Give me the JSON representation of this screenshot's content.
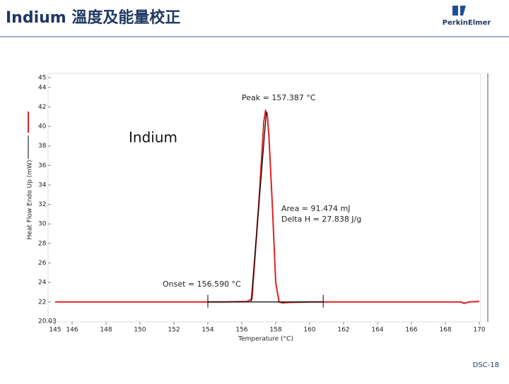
{
  "slide": {
    "title": "Indium 溫度及能量校正",
    "logo": "PerkinElmer",
    "footer": "DSC-18"
  },
  "chart_data": {
    "type": "line",
    "x_label": "Temperature (°C)",
    "y_label": "Heat Flow Endo Up (mW)",
    "annotations": [
      "Peak = 157.387 °C",
      "Indium",
      "Area = 91.474 mJ",
      "Delta H = 27.838 J/g",
      "Onset = 156.590 °C"
    ],
    "xlim": [
      145,
      170
    ],
    "xticks": [
      145,
      146,
      148,
      150,
      152,
      154,
      156,
      158,
      160,
      162,
      164,
      166,
      168,
      170
    ],
    "ylim": [
      20.03,
      45
    ],
    "yticks": [
      20.03,
      22,
      24,
      26,
      28,
      30,
      32,
      34,
      36,
      38,
      40,
      42,
      44,
      45
    ],
    "series": [
      {
        "color": "#e02020",
        "x": [
          145,
          150,
          155,
          156.3,
          156.6,
          157.0,
          157.3,
          157.4,
          157.5,
          157.6,
          157.8,
          158.0,
          158.2,
          158.4,
          158.7,
          160,
          165,
          168.9,
          169.1,
          169.4,
          170
        ],
        "values": [
          22.0,
          22.0,
          22.0,
          22.05,
          22.3,
          32,
          40.5,
          41.6,
          41.3,
          39,
          32,
          24,
          22.0,
          21.9,
          21.95,
          22.0,
          22.0,
          22.0,
          21.85,
          22.0,
          22.05
        ]
      },
      {
        "color": "#000000",
        "x": [
          154,
          160.8
        ],
        "values": [
          22,
          22
        ]
      },
      {
        "color": "#000000",
        "x": [
          156.55,
          157.45
        ],
        "values": [
          22,
          41.5
        ]
      }
    ]
  }
}
